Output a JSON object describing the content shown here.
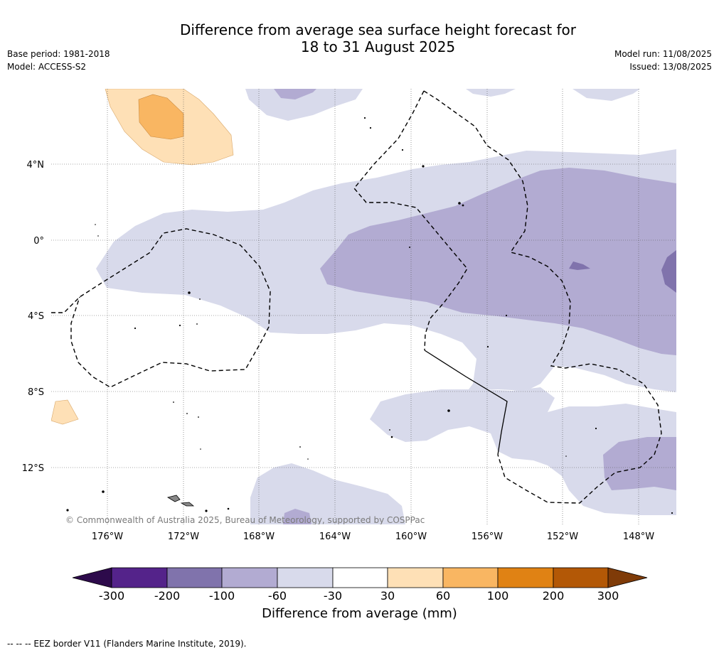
{
  "header": {
    "title_line1": "Difference from average sea surface height forecast for",
    "title_line2": "18 to 31 August 2025",
    "base_period": "Base period: 1981-2018",
    "model": "Model: ACCESS-S2",
    "model_run": "Model run: 11/08/2025",
    "issued": "Issued: 13/08/2025"
  },
  "map": {
    "copyright": "© Commonwealth of Australia 2025, Bureau of Meteorology, supported by COSPPac",
    "lon_labels": [
      "176°W",
      "172°W",
      "168°W",
      "164°W",
      "160°W",
      "156°W",
      "152°W",
      "148°W"
    ],
    "lat_labels": [
      "4°N",
      "0°",
      "4°S",
      "8°S",
      "12°S"
    ],
    "colors": {
      "lt_-300": "#2d0a4b",
      "-300_-200": "#54238a",
      "-200_-100": "#8073ac",
      "-100_-60": "#b2abd2",
      "-60_-30": "#d8daeb",
      "-30_30": "#ffffff",
      "30_60": "#fee0b6",
      "60_100": "#f9b662",
      "100_200": "#e08214",
      "200_300": "#b35806",
      "gt_300": "#7f3b08"
    }
  },
  "colorbar": {
    "ticks": [
      "-300",
      "-200",
      "-100",
      "-60",
      "-30",
      "30",
      "60",
      "100",
      "200",
      "300"
    ],
    "label": "Difference from average (mm)"
  },
  "footnote": "--  --  -- EEZ border V11 (Flanders Marine Institute, 2019)."
}
